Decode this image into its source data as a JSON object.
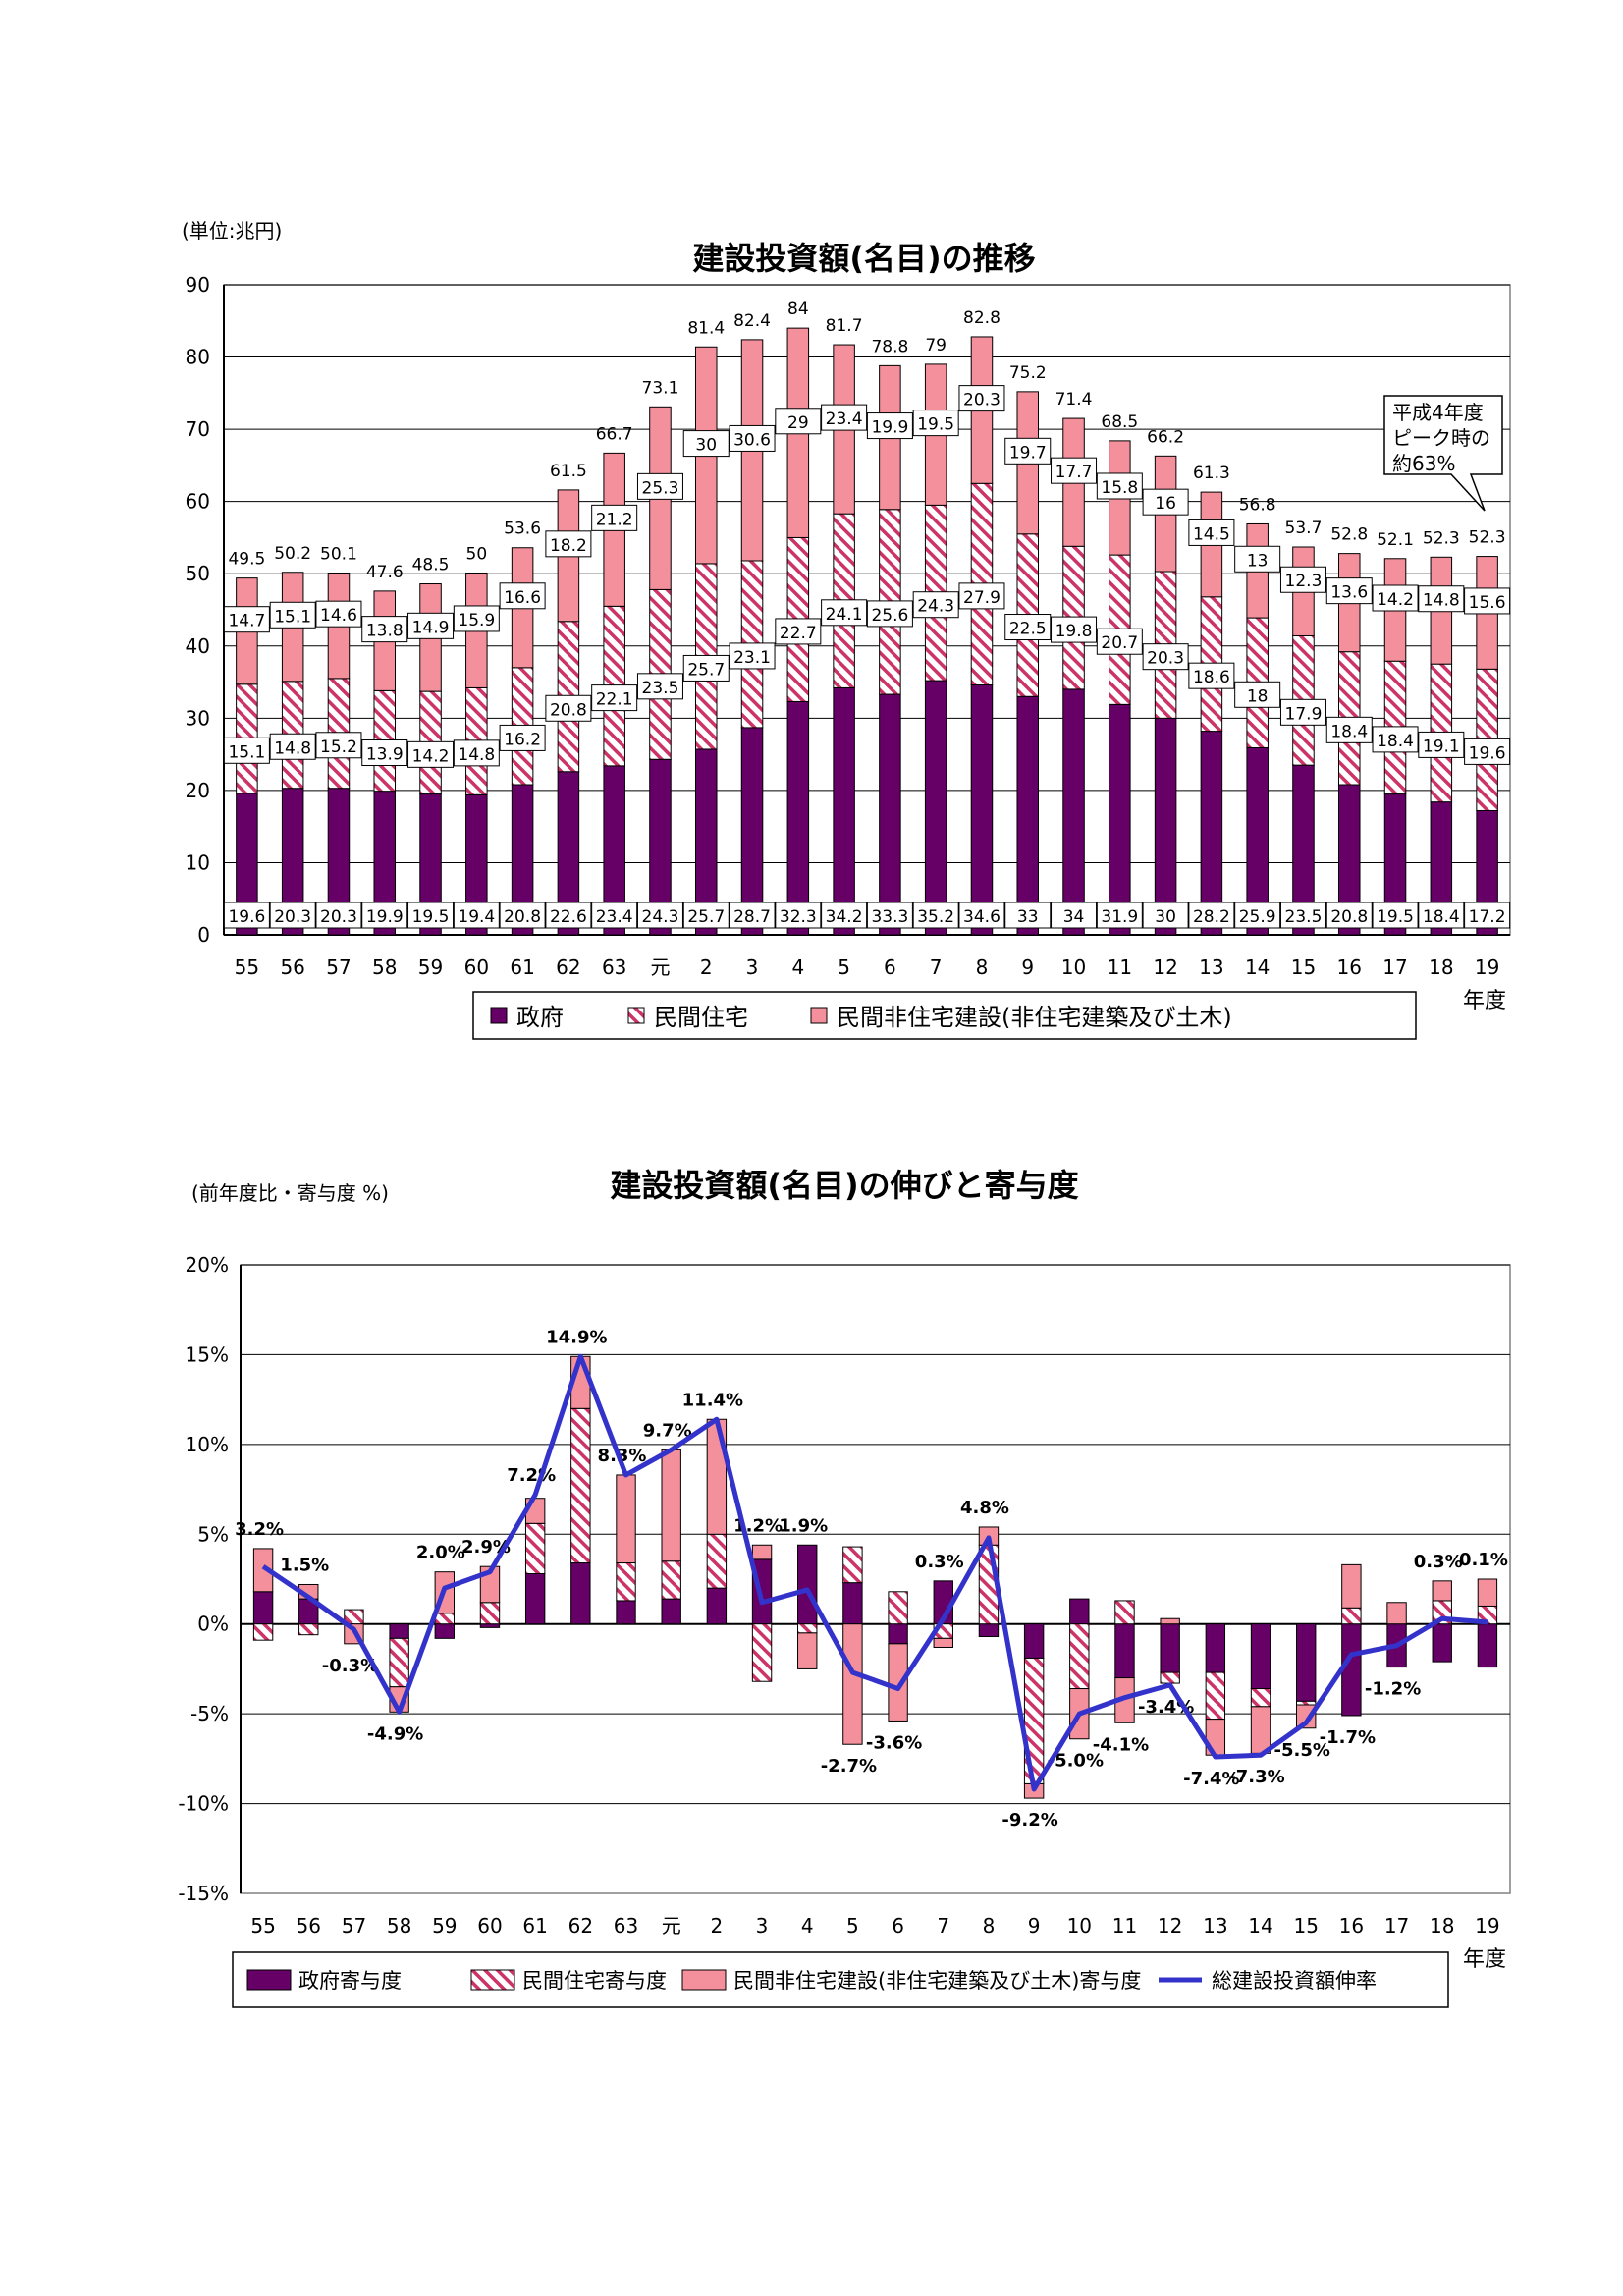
{
  "chart_data": [
    {
      "type": "bar",
      "stacked": true,
      "title": "建設投資額(名目)の推移",
      "unit_label": "(単位:兆円)",
      "xlabel": "年度",
      "ylim": [
        0,
        90
      ],
      "yticks": [
        0,
        10,
        20,
        30,
        40,
        50,
        60,
        70,
        80,
        90
      ],
      "grid": true,
      "legend_position": "bottom",
      "categories": [
        "55",
        "56",
        "57",
        "58",
        "59",
        "60",
        "61",
        "62",
        "63",
        "元",
        "2",
        "3",
        "4",
        "5",
        "6",
        "7",
        "8",
        "9",
        "10",
        "11",
        "12",
        "13",
        "14",
        "15",
        "16",
        "17",
        "18",
        "19"
      ],
      "series": [
        {
          "name": "政府",
          "color": "#660066",
          "values": [
            19.6,
            20.3,
            20.3,
            19.9,
            19.5,
            19.4,
            20.8,
            22.6,
            23.4,
            24.3,
            25.7,
            28.7,
            32.3,
            34.2,
            33.3,
            35.2,
            34.6,
            33.0,
            34.0,
            31.9,
            30.0,
            28.2,
            25.9,
            23.5,
            20.8,
            19.5,
            18.4,
            17.2
          ]
        },
        {
          "name": "民間住宅",
          "color": "#cc3366",
          "pattern": "hatch",
          "values": [
            15.1,
            14.8,
            15.2,
            13.9,
            14.2,
            14.8,
            16.2,
            20.8,
            22.1,
            23.5,
            25.7,
            23.1,
            22.7,
            24.1,
            25.6,
            24.3,
            27.9,
            22.5,
            19.8,
            20.7,
            20.3,
            18.6,
            18.0,
            17.9,
            18.4,
            18.4,
            19.1,
            19.6
          ]
        },
        {
          "name": "民間非住宅建設(非住宅建築及び土木)",
          "color": "#f4909c",
          "values": [
            14.7,
            15.1,
            14.6,
            13.8,
            14.9,
            15.9,
            16.6,
            18.2,
            21.2,
            25.3,
            30.0,
            30.6,
            29.0,
            23.4,
            19.9,
            19.5,
            20.3,
            19.7,
            17.7,
            15.8,
            16.0,
            14.5,
            13.0,
            12.3,
            13.6,
            14.2,
            14.8,
            15.6
          ]
        }
      ],
      "totals": [
        49.5,
        50.2,
        50.1,
        47.6,
        48.5,
        50.0,
        53.6,
        61.5,
        66.7,
        73.1,
        81.4,
        82.4,
        84.0,
        81.7,
        78.8,
        79.0,
        82.8,
        75.2,
        71.4,
        68.5,
        66.2,
        61.3,
        56.8,
        53.7,
        52.8,
        52.1,
        52.3,
        52.3
      ],
      "annotation": {
        "lines": [
          "平成4年度",
          "ピーク時の",
          "約63%"
        ],
        "target_category": "19"
      }
    },
    {
      "type": "bar+line",
      "stacked": true,
      "title": "建設投資額(名目)の伸びと寄与度",
      "unit_label": "(前年度比・寄与度  %)",
      "xlabel": "年度",
      "ylim": [
        -15,
        20
      ],
      "yticks": [
        -15,
        -10,
        -5,
        0,
        5,
        10,
        15,
        20
      ],
      "ytick_labels": [
        "-15%",
        "-10%",
        "-5%",
        "0%",
        "5%",
        "10%",
        "15%",
        "20%"
      ],
      "grid": true,
      "legend_position": "bottom",
      "categories": [
        "55",
        "56",
        "57",
        "58",
        "59",
        "60",
        "61",
        "62",
        "63",
        "元",
        "2",
        "3",
        "4",
        "5",
        "6",
        "7",
        "8",
        "9",
        "10",
        "11",
        "12",
        "13",
        "14",
        "15",
        "16",
        "17",
        "18",
        "19"
      ],
      "series": [
        {
          "name": "政府寄与度",
          "color": "#660066",
          "values": [
            1.8,
            1.4,
            0.0,
            -0.8,
            -0.8,
            -0.2,
            2.8,
            3.4,
            1.3,
            1.4,
            2.0,
            3.6,
            4.4,
            2.3,
            -1.1,
            2.4,
            -0.7,
            -1.9,
            1.4,
            -3.0,
            -2.7,
            -2.7,
            -3.6,
            -4.3,
            -5.1,
            -2.4,
            -2.1,
            -2.4
          ]
        },
        {
          "name": "民間住宅寄与度",
          "color": "#cc3366",
          "pattern": "hatch",
          "values": [
            -0.9,
            -0.6,
            0.8,
            -2.7,
            0.6,
            1.2,
            2.8,
            8.6,
            2.1,
            2.1,
            3.0,
            -3.2,
            -0.5,
            2.0,
            1.8,
            -0.8,
            4.4,
            -7.0,
            -3.6,
            1.3,
            -0.6,
            -2.6,
            -1.0,
            -0.2,
            0.9,
            0.0,
            1.3,
            1.0
          ]
        },
        {
          "name": "民間非住宅建設(非住宅建築及び土木)寄与度",
          "color": "#f4909c",
          "values": [
            2.4,
            0.8,
            -1.1,
            -1.4,
            2.3,
            2.0,
            1.4,
            2.9,
            4.9,
            6.2,
            6.4,
            0.8,
            -2.0,
            -6.7,
            -4.3,
            -0.5,
            1.0,
            -0.8,
            -2.8,
            -2.5,
            0.3,
            -2.0,
            -2.6,
            -1.3,
            2.4,
            1.2,
            1.1,
            1.5
          ]
        },
        {
          "name": "総建設投資額伸率",
          "color": "#3333cc",
          "kind": "line",
          "values": [
            3.2,
            1.5,
            -0.3,
            -4.9,
            2.0,
            2.9,
            7.2,
            14.9,
            8.3,
            9.7,
            11.4,
            1.2,
            1.9,
            -2.7,
            -3.6,
            0.3,
            4.8,
            -9.2,
            -5.0,
            -4.1,
            -3.4,
            -7.4,
            -7.3,
            -5.5,
            -1.7,
            -1.2,
            0.3,
            0.1
          ],
          "labels": [
            "3.2%",
            "1.5%",
            "-0.3%",
            "-4.9%",
            "2.0%",
            "2.9%",
            "7.2%",
            "14.9%",
            "8.3%",
            "9.7%",
            "11.4%",
            "1.2%",
            "1.9%",
            "-2.7%",
            "-3.6%",
            "0.3%",
            "4.8%",
            "-9.2%",
            "-5.0%",
            "-4.1%",
            "-3.4%",
            "-7.4%",
            "-7.3%",
            "-5.5%",
            "-1.7%",
            "-1.2%",
            "0.3%",
            "0.1%"
          ]
        }
      ]
    }
  ]
}
